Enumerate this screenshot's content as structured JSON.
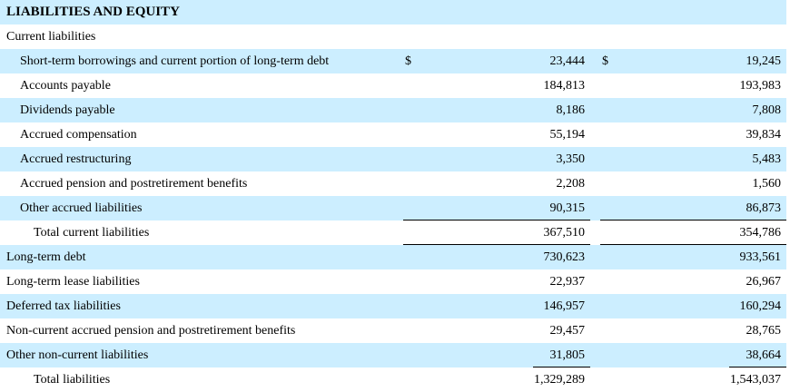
{
  "heading": "LIABILITIES AND EQUITY",
  "current_liabilities_label": "Current liabilities",
  "currency_symbol": "$",
  "rows": [
    {
      "label": "Short-term borrowings and current portion of long-term debt",
      "v1": "23,444",
      "v2": "19,245"
    },
    {
      "label": "Accounts payable",
      "v1": "184,813",
      "v2": "193,983"
    },
    {
      "label": "Dividends payable",
      "v1": "8,186",
      "v2": "7,808"
    },
    {
      "label": "Accrued compensation",
      "v1": "55,194",
      "v2": "39,834"
    },
    {
      "label": "Accrued restructuring",
      "v1": "3,350",
      "v2": "5,483"
    },
    {
      "label": "Accrued pension and postretirement benefits",
      "v1": "2,208",
      "v2": "1,560"
    },
    {
      "label": "Other accrued liabilities",
      "v1": "90,315",
      "v2": "86,873"
    },
    {
      "label": "Total current liabilities",
      "v1": "367,510",
      "v2": "354,786"
    },
    {
      "label": "Long-term debt",
      "v1": "730,623",
      "v2": "933,561"
    },
    {
      "label": "Long-term lease liabilities",
      "v1": "22,937",
      "v2": "26,967"
    },
    {
      "label": "Deferred tax liabilities",
      "v1": "146,957",
      "v2": "160,294"
    },
    {
      "label": "Non-current accrued pension and postretirement benefits",
      "v1": "29,457",
      "v2": "28,765"
    },
    {
      "label": "Other non-current liabilities",
      "v1": "31,805",
      "v2": "38,664"
    },
    {
      "label": "Total liabilities",
      "v1": "1,329,289",
      "v2": "1,543,037"
    }
  ],
  "colors": {
    "stripe": "#cceeff",
    "text": "#000000",
    "rule": "#000000"
  }
}
